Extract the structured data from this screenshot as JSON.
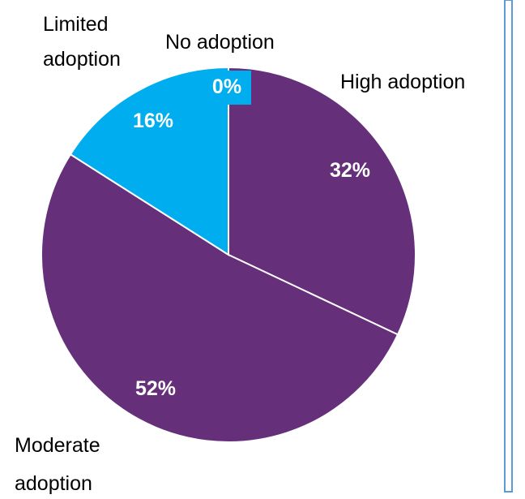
{
  "chart_data": {
    "type": "pie",
    "title": "",
    "categories": [
      "High adoption",
      "Moderate adoption",
      "Limited adoption",
      "No adoption"
    ],
    "values": [
      32,
      52,
      16,
      0
    ],
    "value_labels": [
      "32%",
      "52%",
      "16%",
      "0%"
    ],
    "label_lines": [
      [
        "High adoption"
      ],
      [
        "Moderate",
        "adoption"
      ],
      [
        "Limited",
        "adoption"
      ],
      [
        "No adoption"
      ]
    ],
    "colors": [
      "#652F7A",
      "#652F7A",
      "#00AEEF",
      "#00AEEF"
    ],
    "slice_border_color": "#FFFFFF",
    "label_color": "#000000",
    "value_label_color": "#FFFFFF",
    "start": "12 o'clock",
    "direction": "clockwise",
    "legend": "none"
  },
  "frame": {
    "border_color": "#5B9BD5"
  }
}
